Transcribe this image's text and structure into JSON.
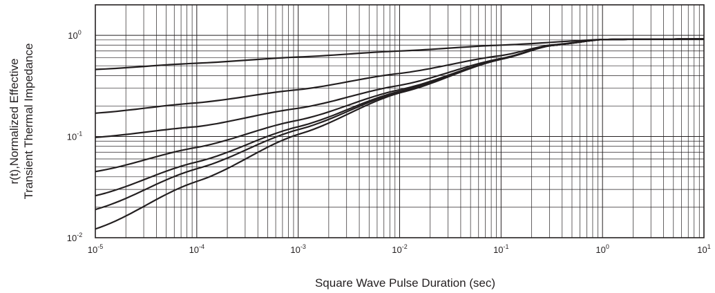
{
  "chart_data": {
    "type": "line",
    "title": "",
    "xlabel": "Square Wave Pulse Duration (sec)",
    "ylabel_lines": [
      "r(t),Normalized Effective",
      "Transient Thermal Impedance"
    ],
    "xscale": "log",
    "yscale": "log",
    "xlim": [
      1e-05,
      10
    ],
    "ylim": [
      0.01,
      2
    ],
    "grid": true,
    "legend": "none",
    "x_ticks": [
      {
        "base": "10",
        "exp": "-5",
        "value": 1e-05
      },
      {
        "base": "10",
        "exp": "-4",
        "value": 0.0001
      },
      {
        "base": "10",
        "exp": "-3",
        "value": 0.001
      },
      {
        "base": "10",
        "exp": "-2",
        "value": 0.01
      },
      {
        "base": "10",
        "exp": "-1",
        "value": 0.1
      },
      {
        "base": "10",
        "exp": "0",
        "value": 1
      },
      {
        "base": "10",
        "exp": "1",
        "value": 10
      }
    ],
    "y_ticks": [
      {
        "base": "10",
        "exp": "-2",
        "value": 0.01
      },
      {
        "base": "10",
        "exp": "-1",
        "value": 0.1
      },
      {
        "base": "10",
        "exp": "0",
        "value": 1
      }
    ],
    "series": [
      {
        "x": [
          1e-05,
          0.0001,
          0.001,
          0.01,
          0.1,
          1,
          10
        ],
        "y": [
          0.46,
          0.53,
          0.61,
          0.7,
          0.8,
          0.91,
          0.92
        ]
      },
      {
        "x": [
          1e-05,
          0.0001,
          0.001,
          0.01,
          0.1,
          0.3,
          1,
          10
        ],
        "y": [
          0.17,
          0.215,
          0.29,
          0.42,
          0.63,
          0.8,
          0.91,
          0.92
        ]
      },
      {
        "x": [
          1e-05,
          0.0001,
          0.001,
          0.01,
          0.1,
          0.3,
          1,
          10
        ],
        "y": [
          0.098,
          0.125,
          0.19,
          0.32,
          0.59,
          0.79,
          0.91,
          0.92
        ]
      },
      {
        "x": [
          1e-05,
          0.0001,
          0.001,
          0.01,
          0.1,
          0.3,
          1,
          10
        ],
        "y": [
          0.045,
          0.078,
          0.145,
          0.29,
          0.58,
          0.79,
          0.91,
          0.92
        ]
      },
      {
        "x": [
          1e-05,
          0.0001,
          0.001,
          0.01,
          0.1,
          0.3,
          1,
          10
        ],
        "y": [
          0.026,
          0.056,
          0.125,
          0.28,
          0.58,
          0.79,
          0.91,
          0.92
        ]
      },
      {
        "x": [
          1e-05,
          0.0001,
          0.001,
          0.01,
          0.1,
          0.3,
          1,
          10
        ],
        "y": [
          0.019,
          0.048,
          0.117,
          0.275,
          0.58,
          0.79,
          0.91,
          0.92
        ]
      },
      {
        "x": [
          1e-05,
          0.0001,
          0.001,
          0.01,
          0.1,
          0.3,
          1,
          10
        ],
        "y": [
          0.0122,
          0.036,
          0.105,
          0.27,
          0.58,
          0.79,
          0.91,
          0.92
        ]
      }
    ],
    "colors": {
      "line": "#231f20",
      "grid": "#231f20",
      "frame": "#231f20"
    }
  }
}
